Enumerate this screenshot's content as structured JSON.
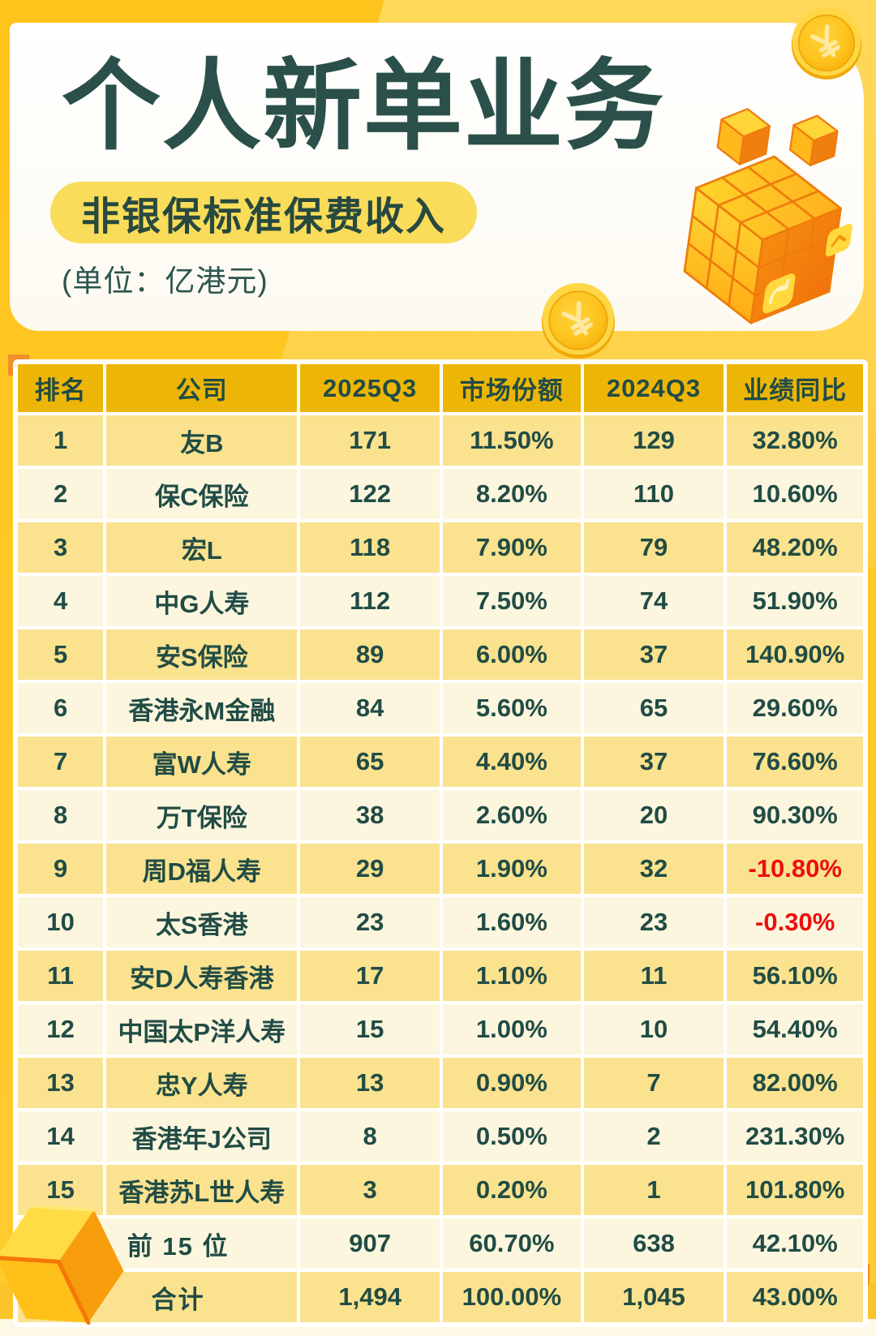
{
  "header": {
    "title": "个人新单业务",
    "subtitle": "非银保标准保费收入",
    "unit_note": "(单位：亿港元)"
  },
  "table": {
    "columns": [
      "排名",
      "公司",
      "2025Q3",
      "市场份额",
      "2024Q3",
      "业绩同比"
    ],
    "rows": [
      {
        "rank": "1",
        "company": "友B",
        "q3_2025": "171",
        "share": "11.50%",
        "q3_2024": "129",
        "yoy": "32.80%",
        "yoy_negative": false
      },
      {
        "rank": "2",
        "company": "保C保险",
        "q3_2025": "122",
        "share": "8.20%",
        "q3_2024": "110",
        "yoy": "10.60%",
        "yoy_negative": false
      },
      {
        "rank": "3",
        "company": "宏L",
        "q3_2025": "118",
        "share": "7.90%",
        "q3_2024": "79",
        "yoy": "48.20%",
        "yoy_negative": false
      },
      {
        "rank": "4",
        "company": "中G人寿",
        "q3_2025": "112",
        "share": "7.50%",
        "q3_2024": "74",
        "yoy": "51.90%",
        "yoy_negative": false
      },
      {
        "rank": "5",
        "company": "安S保险",
        "q3_2025": "89",
        "share": "6.00%",
        "q3_2024": "37",
        "yoy": "140.90%",
        "yoy_negative": false
      },
      {
        "rank": "6",
        "company": "香港永M金融",
        "q3_2025": "84",
        "share": "5.60%",
        "q3_2024": "65",
        "yoy": "29.60%",
        "yoy_negative": false
      },
      {
        "rank": "7",
        "company": "富W人寿",
        "q3_2025": "65",
        "share": "4.40%",
        "q3_2024": "37",
        "yoy": "76.60%",
        "yoy_negative": false
      },
      {
        "rank": "8",
        "company": "万T保险",
        "q3_2025": "38",
        "share": "2.60%",
        "q3_2024": "20",
        "yoy": "90.30%",
        "yoy_negative": false
      },
      {
        "rank": "9",
        "company": "周D福人寿",
        "q3_2025": "29",
        "share": "1.90%",
        "q3_2024": "32",
        "yoy": "-10.80%",
        "yoy_negative": true
      },
      {
        "rank": "10",
        "company": "太S香港",
        "q3_2025": "23",
        "share": "1.60%",
        "q3_2024": "23",
        "yoy": "-0.30%",
        "yoy_negative": true
      },
      {
        "rank": "11",
        "company": "安D人寿香港",
        "q3_2025": "17",
        "share": "1.10%",
        "q3_2024": "11",
        "yoy": "56.10%",
        "yoy_negative": false
      },
      {
        "rank": "12",
        "company": "中国太P洋人寿",
        "q3_2025": "15",
        "share": "1.00%",
        "q3_2024": "10",
        "yoy": "54.40%",
        "yoy_negative": false
      },
      {
        "rank": "13",
        "company": "忠Y人寿",
        "q3_2025": "13",
        "share": "0.90%",
        "q3_2024": "7",
        "yoy": "82.00%",
        "yoy_negative": false
      },
      {
        "rank": "14",
        "company": "香港年J公司",
        "q3_2025": "8",
        "share": "0.50%",
        "q3_2024": "2",
        "yoy": "231.30%",
        "yoy_negative": false
      },
      {
        "rank": "15",
        "company": "香港苏L世人寿",
        "q3_2025": "3",
        "share": "0.20%",
        "q3_2024": "1",
        "yoy": "101.80%",
        "yoy_negative": false
      }
    ],
    "summary": [
      {
        "label": "前 15 位",
        "q3_2025": "907",
        "share": "60.70%",
        "q3_2024": "638",
        "yoy": "42.10%",
        "yoy_negative": false
      },
      {
        "label": "合计",
        "q3_2025": "1,494",
        "share": "100.00%",
        "q3_2024": "1,045",
        "yoy": "43.00%",
        "yoy_negative": false
      }
    ]
  },
  "chart_data": {
    "type": "table",
    "title": "个人新单业务",
    "subtitle": "非银保标准保费收入",
    "unit": "亿港元",
    "columns": [
      "排名",
      "公司",
      "2025Q3",
      "市场份额",
      "2024Q3",
      "业绩同比"
    ],
    "rows": [
      [
        1,
        "友B",
        171,
        "11.50%",
        129,
        "32.80%"
      ],
      [
        2,
        "保C保险",
        122,
        "8.20%",
        110,
        "10.60%"
      ],
      [
        3,
        "宏L",
        118,
        "7.90%",
        79,
        "48.20%"
      ],
      [
        4,
        "中G人寿",
        112,
        "7.50%",
        74,
        "51.90%"
      ],
      [
        5,
        "安S保险",
        89,
        "6.00%",
        37,
        "140.90%"
      ],
      [
        6,
        "香港永M金融",
        84,
        "5.60%",
        65,
        "29.60%"
      ],
      [
        7,
        "富W人寿",
        65,
        "4.40%",
        37,
        "76.60%"
      ],
      [
        8,
        "万T保险",
        38,
        "2.60%",
        20,
        "90.30%"
      ],
      [
        9,
        "周D福人寿",
        29,
        "1.90%",
        32,
        "-10.80%"
      ],
      [
        10,
        "太S香港",
        23,
        "1.60%",
        23,
        "-0.30%"
      ],
      [
        11,
        "安D人寿香港",
        17,
        "1.10%",
        11,
        "56.10%"
      ],
      [
        12,
        "中国太P洋人寿",
        15,
        "1.00%",
        10,
        "54.40%"
      ],
      [
        13,
        "忠Y人寿",
        13,
        "0.90%",
        7,
        "82.00%"
      ],
      [
        14,
        "香港年J公司",
        8,
        "0.50%",
        2,
        "231.30%"
      ],
      [
        15,
        "香港苏L世人寿",
        3,
        "0.20%",
        1,
        "101.80%"
      ]
    ],
    "summary_rows": [
      [
        "前 15 位",
        907,
        "60.70%",
        638,
        "42.10%"
      ],
      [
        "合计",
        1494,
        "100.00%",
        1045,
        "43.00%"
      ]
    ]
  },
  "colors": {
    "background_gold": "#FFC71F",
    "background_light_band": "#FFD95E",
    "card_white": "#FFFFFF",
    "title_teal": "#2A5049",
    "subtitle_pill_yellow": "#F9DC5A",
    "table_header_gold": "#EDB606",
    "row_yellow": "#FAE28F",
    "row_cream": "#FCF6DF",
    "cell_text_teal": "#214C45",
    "negative_red": "#ED0E0E",
    "accent_orange": "#F28E2B"
  },
  "icons": [
    "coin-icon",
    "cubes-decoration-icon",
    "cube-decoration-icon"
  ]
}
